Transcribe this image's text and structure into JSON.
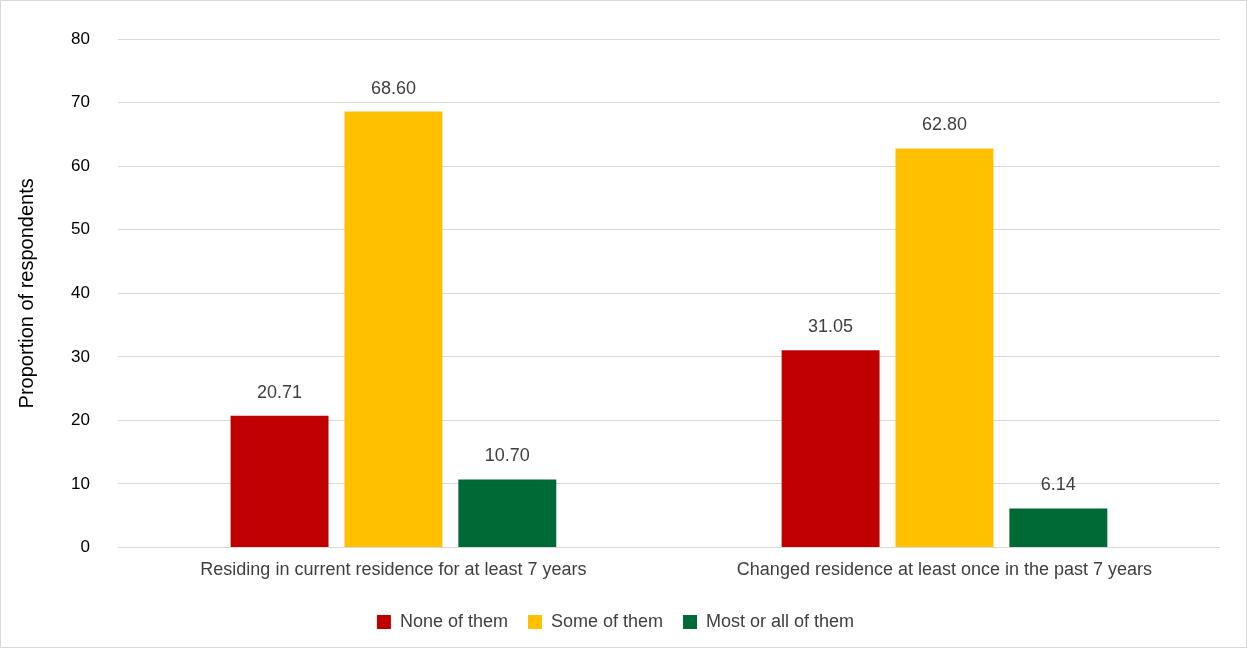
{
  "chart_data": {
    "type": "bar",
    "ylabel": "Proportion of respondents",
    "categories": [
      "Residing in current residence for at least 7 years",
      "Changed residence at least once in the past 7 years"
    ],
    "series": [
      {
        "name": "None of them",
        "color": "#c00000",
        "values": [
          20.71,
          31.05
        ],
        "value_labels": [
          "20.71",
          "31.05"
        ]
      },
      {
        "name": "Some of them",
        "color": "#ffc000",
        "values": [
          68.6,
          62.8
        ],
        "value_labels": [
          "68.60",
          "62.80"
        ]
      },
      {
        "name": "Most or all of them",
        "color": "#006a37",
        "values": [
          10.7,
          6.14
        ],
        "value_labels": [
          "10.70",
          "6.14"
        ]
      }
    ],
    "ylim": [
      0,
      80
    ],
    "yticks": [
      0,
      10,
      20,
      30,
      40,
      50,
      60,
      70,
      80
    ],
    "grid": "y",
    "legend": "bottom"
  }
}
